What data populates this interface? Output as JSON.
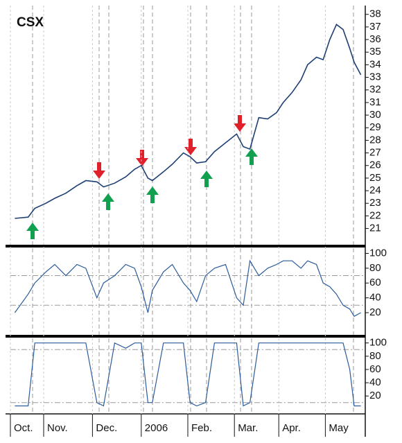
{
  "chart_data": [
    {
      "type": "line",
      "title": "CSX",
      "color": "#1d3f73",
      "x": [
        2,
        8,
        11,
        16,
        20,
        25,
        30,
        34,
        39,
        42,
        47,
        52,
        56,
        59,
        62,
        64,
        69,
        73,
        78,
        81,
        84,
        88,
        92,
        97,
        102,
        105,
        108,
        112,
        116,
        120,
        123,
        127,
        131,
        134,
        138,
        141,
        144,
        147,
        150,
        153,
        155,
        158
      ],
      "values": [
        21.8,
        21.9,
        22.6,
        23.0,
        23.4,
        23.8,
        24.4,
        24.8,
        24.7,
        24.3,
        24.6,
        25.1,
        25.7,
        26.0,
        25.0,
        24.8,
        25.5,
        26.1,
        27.0,
        26.7,
        26.2,
        26.3,
        27.1,
        27.8,
        28.5,
        27.5,
        27.3,
        29.8,
        29.7,
        30.2,
        31.0,
        31.8,
        32.8,
        34.0,
        34.6,
        34.4,
        36.0,
        37.2,
        36.8,
        35.3,
        34.2,
        33.2
      ],
      "xlim": [
        0,
        160
      ],
      "ylim": [
        19.6,
        38.7
      ],
      "yticks": [
        21,
        22,
        23,
        24,
        25,
        26,
        27,
        28,
        29,
        30,
        31,
        32,
        33,
        34,
        35,
        36,
        37,
        38
      ]
    },
    {
      "type": "line",
      "color": "#2a5b9a",
      "x": [
        2,
        8,
        11,
        16,
        20,
        25,
        30,
        34,
        39,
        42,
        47,
        52,
        56,
        59,
        62,
        64,
        69,
        73,
        78,
        81,
        84,
        88,
        92,
        97,
        102,
        105,
        108,
        112,
        116,
        120,
        123,
        127,
        131,
        134,
        138,
        141,
        144,
        147,
        150,
        153,
        155,
        158
      ],
      "values": [
        20,
        45,
        60,
        75,
        85,
        70,
        85,
        80,
        40,
        60,
        70,
        85,
        80,
        55,
        20,
        50,
        75,
        85,
        60,
        50,
        35,
        70,
        80,
        85,
        40,
        30,
        90,
        70,
        80,
        85,
        90,
        90,
        80,
        90,
        85,
        60,
        55,
        45,
        30,
        25,
        15,
        20
      ],
      "xlim": [
        0,
        160
      ],
      "ylim": [
        -9,
        107
      ],
      "yticks": [
        20,
        40,
        60,
        80,
        100
      ],
      "reference_lines": [
        30,
        70
      ]
    },
    {
      "type": "line",
      "color": "#2a5b9a",
      "x": [
        2,
        8,
        11,
        16,
        20,
        25,
        30,
        34,
        39,
        42,
        47,
        52,
        56,
        59,
        62,
        64,
        69,
        73,
        78,
        81,
        84,
        88,
        92,
        97,
        102,
        105,
        108,
        112,
        116,
        120,
        123,
        127,
        131,
        134,
        138,
        141,
        144,
        147,
        150,
        153,
        155,
        158
      ],
      "values": [
        5,
        5,
        100,
        100,
        100,
        100,
        100,
        100,
        10,
        5,
        100,
        92,
        100,
        100,
        10,
        10,
        100,
        100,
        100,
        10,
        5,
        10,
        100,
        100,
        100,
        5,
        10,
        100,
        100,
        100,
        100,
        100,
        100,
        100,
        100,
        100,
        100,
        100,
        100,
        60,
        5,
        5
      ],
      "xlim": [
        0,
        160
      ],
      "ylim": [
        -7,
        107
      ],
      "yticks": [
        20,
        40,
        60,
        80,
        100
      ],
      "reference_lines": [
        10,
        90
      ],
      "xticks": [
        {
          "value": 0,
          "label": "Oct."
        },
        {
          "value": 15,
          "label": "Nov."
        },
        {
          "value": 37,
          "label": "Dec."
        },
        {
          "value": 59,
          "label": "2006"
        },
        {
          "value": 80,
          "label": "Feb."
        },
        {
          "value": 101,
          "label": "Mar."
        },
        {
          "value": 121,
          "label": "Apr."
        },
        {
          "value": 142,
          "label": "May"
        }
      ]
    }
  ]
}
